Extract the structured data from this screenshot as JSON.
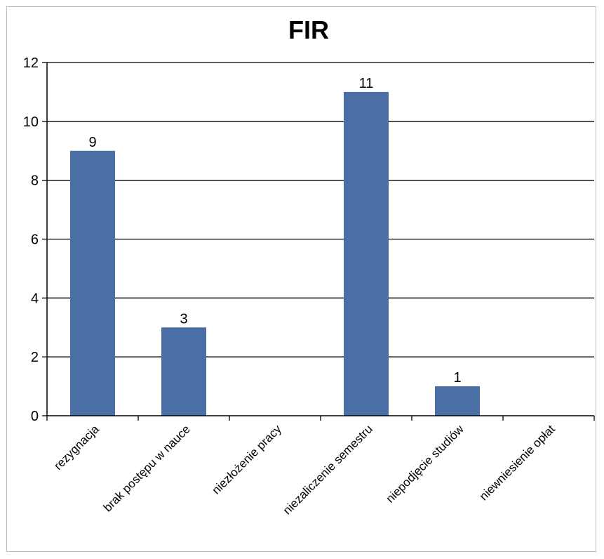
{
  "chart_data": {
    "type": "bar",
    "title": "FIR",
    "xlabel": "",
    "ylabel": "",
    "categories": [
      "rezygnacja",
      "brak postępu w nauce",
      "niezłożenie pracy",
      "niezaliczenie semestru",
      "niepodjęcie studiów",
      "niewniesienie opłat"
    ],
    "values": [
      9,
      3,
      0,
      11,
      1,
      0
    ],
    "data_labels": [
      "9",
      "3",
      "",
      "11",
      "1",
      ""
    ],
    "ylim": [
      0,
      12
    ],
    "yticks": [
      0,
      2,
      4,
      6,
      8,
      10,
      12
    ],
    "grid": true,
    "legend": "none",
    "bar_color": "#4a6fa5"
  }
}
